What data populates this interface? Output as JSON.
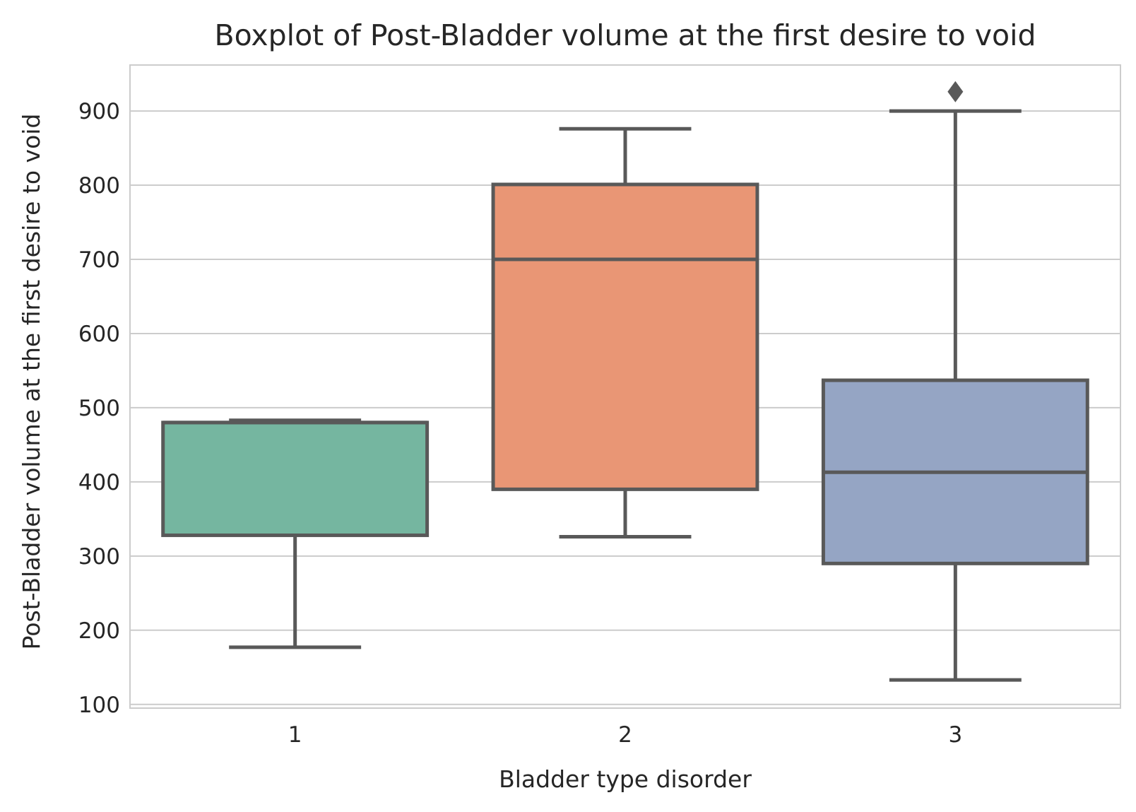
{
  "chart_data": {
    "type": "boxplot",
    "title": "Boxplot of Post-Bladder volume at the first desire to void",
    "xlabel": "Bladder type disorder",
    "ylabel": "Post-Bladder volume at the first desire to void",
    "categories": [
      "1",
      "2",
      "3"
    ],
    "ylim": [
      95,
      962
    ],
    "yticks": [
      100,
      200,
      300,
      400,
      500,
      600,
      700,
      800,
      900
    ],
    "grid": "horizontal",
    "boxes": [
      {
        "category": "1",
        "whisker_low": 177,
        "q1": 328,
        "median": 480,
        "q3": 480,
        "whisker_high": 483,
        "outliers": [],
        "color": "#75b6a0"
      },
      {
        "category": "2",
        "whisker_low": 326,
        "q1": 390,
        "median": 700,
        "q3": 801,
        "whisker_high": 876,
        "outliers": [],
        "color": "#e99675"
      },
      {
        "category": "3",
        "whisker_low": 133,
        "q1": 290,
        "median": 413,
        "q3": 537,
        "whisker_high": 900,
        "outliers": [
          926
        ],
        "color": "#95a5c4"
      }
    ],
    "colors": {
      "line": "#595959",
      "grid": "#cccccc",
      "text": "#262626"
    }
  }
}
